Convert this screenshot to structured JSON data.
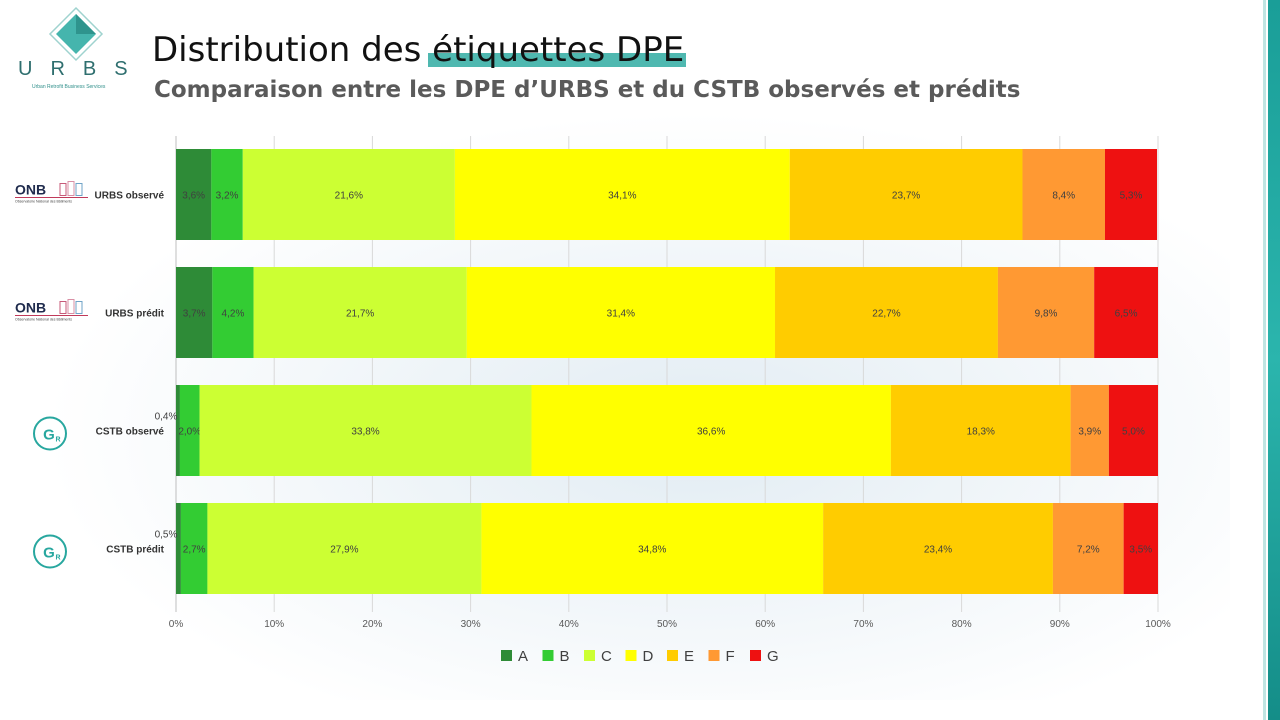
{
  "logo": {
    "letters": "URBS",
    "tagline": "Urban Retrofit Business Services"
  },
  "header": {
    "title": "Distribution des étiquettes DPE",
    "subtitle": "Comparaison entre les DPE d’URBS et du CSTB observés et prédits"
  },
  "row_logos": [
    "ONB",
    "ONB",
    "GR",
    "GR"
  ],
  "row_logo_caption": "Observatoire National des Bâtiments",
  "chart_data": {
    "type": "bar",
    "orientation": "horizontal",
    "stacked": "percent",
    "categories": [
      "URBS observé",
      "URBS prédit",
      "CSTB observé",
      "CSTB prédit"
    ],
    "series": [
      {
        "name": "A",
        "color": "#2e8b37",
        "values": [
          3.6,
          3.7,
          0.4,
          0.5
        ],
        "labels": [
          "3,6%",
          "3,7%",
          "0,4%",
          "0,5%"
        ]
      },
      {
        "name": "B",
        "color": "#33cc33",
        "values": [
          3.2,
          4.2,
          2.0,
          2.7
        ],
        "labels": [
          "3,2%",
          "4,2%",
          "2,0%",
          "2,7%"
        ]
      },
      {
        "name": "C",
        "color": "#ccff33",
        "values": [
          21.6,
          21.7,
          33.8,
          27.9
        ],
        "labels": [
          "21,6%",
          "21,7%",
          "33,8%",
          "27,9%"
        ]
      },
      {
        "name": "D",
        "color": "#ffff00",
        "values": [
          34.1,
          31.4,
          36.6,
          34.8
        ],
        "labels": [
          "34,1%",
          "31,4%",
          "36,6%",
          "34,8%"
        ]
      },
      {
        "name": "E",
        "color": "#ffcc00",
        "values": [
          23.7,
          22.7,
          18.3,
          23.4
        ],
        "labels": [
          "23,7%",
          "22,7%",
          "18,3%",
          "23,4%"
        ]
      },
      {
        "name": "F",
        "color": "#ff9933",
        "values": [
          8.4,
          9.8,
          3.9,
          7.2
        ],
        "labels": [
          "8,4%",
          "9,8%",
          "3,9%",
          "7,2%"
        ]
      },
      {
        "name": "G",
        "color": "#ee1111",
        "values": [
          5.3,
          6.5,
          5.0,
          3.5
        ],
        "labels": [
          "5,3%",
          "6,5%",
          "5,0%",
          "3,5%"
        ]
      }
    ],
    "xlim": [
      0,
      100
    ],
    "xticks": [
      "0%",
      "10%",
      "20%",
      "30%",
      "40%",
      "50%",
      "60%",
      "70%",
      "80%",
      "90%",
      "100%"
    ],
    "grid": true,
    "legend": "bottom"
  }
}
